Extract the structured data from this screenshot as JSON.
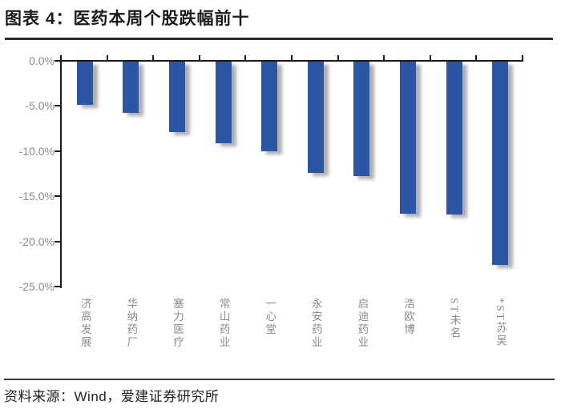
{
  "header": {
    "title": "图表 4：医药本周个股跌幅前十"
  },
  "footer": {
    "source": "资料来源：Wind，爱建证券研究所"
  },
  "chart_data": {
    "type": "bar",
    "title": "医药本周个股跌幅前十",
    "categories": [
      "济高发展",
      "华纳药厂",
      "塞力医疗",
      "常山药业",
      "一心堂",
      "永安药业",
      "启迪药业",
      "浩欧博",
      "ST未名",
      "*ST苏吴"
    ],
    "values": [
      -4.8,
      -5.7,
      -7.8,
      -9.0,
      -9.9,
      -12.3,
      -12.7,
      -16.8,
      -16.9,
      -22.5
    ],
    "unit": "%",
    "xlabel": "",
    "ylabel": "",
    "ylim": [
      -25,
      0
    ],
    "y_tick_labels": [
      "0.0%",
      "-5.0%",
      "-10.0%",
      "-15.0%",
      "-20.0%",
      "-25.0%"
    ],
    "grid": false,
    "legend": "none",
    "bar_color": "#2d55a5",
    "axis_color": "#1a1a1a",
    "tick_label_color": "#8a8a8a",
    "category_label_color": "#8c8c8c"
  }
}
